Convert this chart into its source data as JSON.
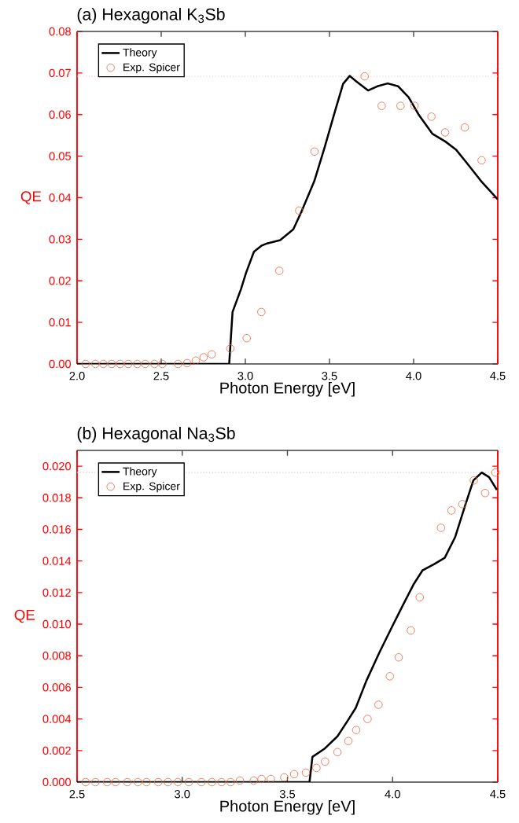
{
  "chart_data": [
    {
      "type": "line",
      "title": "(a) Hexagonal K$_{3}$Sb",
      "xlabel": "Photon Energy [eV]",
      "ylabel": "QE",
      "xlim": [
        2.0,
        4.5
      ],
      "ylim": [
        0,
        0.08
      ],
      "xticks": [
        {
          "value": 2.0,
          "label": "2.0"
        },
        {
          "value": 2.5,
          "label": "2.5"
        },
        {
          "value": 3.0,
          "label": "3.0"
        },
        {
          "value": 3.5,
          "label": "3.5"
        },
        {
          "value": 4.0,
          "label": "4.0"
        },
        {
          "value": 4.5,
          "label": "4.5"
        }
      ],
      "yticks": [
        {
          "value": 0,
          "label": "0.00"
        },
        {
          "value": 0.01,
          "label": "0.01"
        },
        {
          "value": 0.02,
          "label": "0.02"
        },
        {
          "value": 0.03,
          "label": "0.03"
        },
        {
          "value": 0.04,
          "label": "0.04"
        },
        {
          "value": 0.05,
          "label": "0.05"
        },
        {
          "value": 0.06,
          "label": "0.06"
        },
        {
          "value": 0.07,
          "label": "0.07"
        },
        {
          "value": 0.08,
          "label": "0.08"
        }
      ],
      "legend": "top left",
      "ref_lines": [
        {
          "axis": "y",
          "value": 0.0692,
          "color": "#ffb0b0",
          "line_style": "dotted"
        }
      ],
      "series": [
        {
          "name": "Theory",
          "color": "#000000",
          "marker": "none",
          "line_style": "solid",
          "x": [
            2.0,
            2.904,
            2.924,
            2.974,
            3.005,
            3.051,
            3.098,
            3.129,
            3.207,
            3.285,
            3.332,
            3.41,
            3.472,
            3.535,
            3.581,
            3.62,
            3.659,
            3.729,
            3.784,
            3.846,
            3.908,
            3.97,
            4.033,
            4.111,
            4.189,
            4.251,
            4.313,
            4.407,
            4.5
          ],
          "values": [
            0,
            0,
            0.0125,
            0.018,
            0.022,
            0.027,
            0.0285,
            0.029,
            0.0298,
            0.0324,
            0.0365,
            0.044,
            0.0522,
            0.0611,
            0.0674,
            0.0693,
            0.068,
            0.0658,
            0.0668,
            0.0675,
            0.0668,
            0.0642,
            0.0598,
            0.0554,
            0.0535,
            0.0516,
            0.0485,
            0.0437,
            0.0396
          ]
        },
        {
          "name": "Exp. Spicer",
          "type": "scatter",
          "color": "#e8643c",
          "marker": "circle",
          "x": [
            2.051,
            2.109,
            2.156,
            2.206,
            2.256,
            2.304,
            2.358,
            2.405,
            2.46,
            2.507,
            2.6,
            2.654,
            2.706,
            2.752,
            2.8,
            2.911,
            3.008,
            3.095,
            3.202,
            3.32,
            3.411,
            3.709,
            3.81,
            3.922,
            4.005,
            4.106,
            4.187,
            4.304,
            4.404
          ],
          "values": [
            0,
            0,
            0,
            0,
            0,
            0,
            0,
            0,
            0,
            0,
            0,
            0.0002,
            0.0008,
            0.0016,
            0.0023,
            0.0037,
            0.0062,
            0.0125,
            0.0224,
            0.0369,
            0.0511,
            0.0692,
            0.0621,
            0.0621,
            0.0621,
            0.0595,
            0.0557,
            0.0569,
            0.049
          ]
        }
      ]
    },
    {
      "type": "line",
      "title": "(b) Hexagonal Na$_{3}$Sb",
      "xlabel": "Photon Energy [eV]",
      "ylabel": "QE",
      "xlim": [
        2.5,
        4.5
      ],
      "ylim": [
        0,
        0.021
      ],
      "xticks": [
        {
          "value": 2.5,
          "label": "2.5"
        },
        {
          "value": 3.0,
          "label": "3.0"
        },
        {
          "value": 3.5,
          "label": "3.5"
        },
        {
          "value": 4.0,
          "label": "4.0"
        },
        {
          "value": 4.5,
          "label": "4.5"
        }
      ],
      "yticks": [
        {
          "value": 0,
          "label": "0.000"
        },
        {
          "value": 0.002,
          "label": "0.002"
        },
        {
          "value": 0.004,
          "label": "0.004"
        },
        {
          "value": 0.006,
          "label": "0.006"
        },
        {
          "value": 0.008,
          "label": "0.008"
        },
        {
          "value": 0.01,
          "label": "0.010"
        },
        {
          "value": 0.012,
          "label": "0.012"
        },
        {
          "value": 0.014,
          "label": "0.014"
        },
        {
          "value": 0.016,
          "label": "0.016"
        },
        {
          "value": 0.018,
          "label": "0.018"
        },
        {
          "value": 0.02,
          "label": "0.020"
        }
      ],
      "legend": "top left",
      "ref_lines": [
        {
          "axis": "y",
          "value": 0.0196,
          "color": "#ffb0b0",
          "line_style": "dotted"
        }
      ],
      "series": [
        {
          "name": "Theory",
          "color": "#000000",
          "marker": "none",
          "line_style": "solid",
          "x": [
            2.5,
            3.605,
            3.619,
            3.675,
            3.738,
            3.787,
            3.825,
            3.875,
            3.937,
            4.0,
            4.049,
            4.099,
            4.142,
            4.198,
            4.248,
            4.297,
            4.347,
            4.384,
            4.424,
            4.459,
            4.496
          ],
          "values": [
            0,
            0,
            0.0016,
            0.0021,
            0.0029,
            0.0039,
            0.0047,
            0.0064,
            0.0082,
            0.0099,
            0.0112,
            0.0125,
            0.0134,
            0.0138,
            0.0142,
            0.0155,
            0.0176,
            0.0191,
            0.0196,
            0.0193,
            0.0185
          ]
        },
        {
          "name": "Exp. Spicer",
          "type": "scatter",
          "color": "#e8643c",
          "marker": "circle",
          "x": [
            2.541,
            2.587,
            2.643,
            2.683,
            2.739,
            2.789,
            2.83,
            2.886,
            2.932,
            2.979,
            3.031,
            3.091,
            3.141,
            3.187,
            3.23,
            3.274,
            3.34,
            3.377,
            3.421,
            3.485,
            3.532,
            3.588,
            3.638,
            3.679,
            3.738,
            3.79,
            3.827,
            3.881,
            3.933,
            3.987,
            4.029,
            4.087,
            4.129,
            4.23,
            4.28,
            4.332,
            4.386,
            4.44,
            4.489
          ],
          "values": [
            0,
            0,
            0,
            0,
            0,
            0,
            0,
            0,
            0,
            0,
            0,
            0,
            0,
            0,
            0,
            0.0001,
            0.0001,
            0.0002,
            0.0002,
            0.0003,
            0.0005,
            0.0006,
            0.0009,
            0.0013,
            0.0019,
            0.0026,
            0.0033,
            0.004,
            0.0049,
            0.0067,
            0.0079,
            0.0096,
            0.0117,
            0.0161,
            0.0172,
            0.0176,
            0.0191,
            0.0183,
            0.0196
          ]
        }
      ]
    }
  ]
}
